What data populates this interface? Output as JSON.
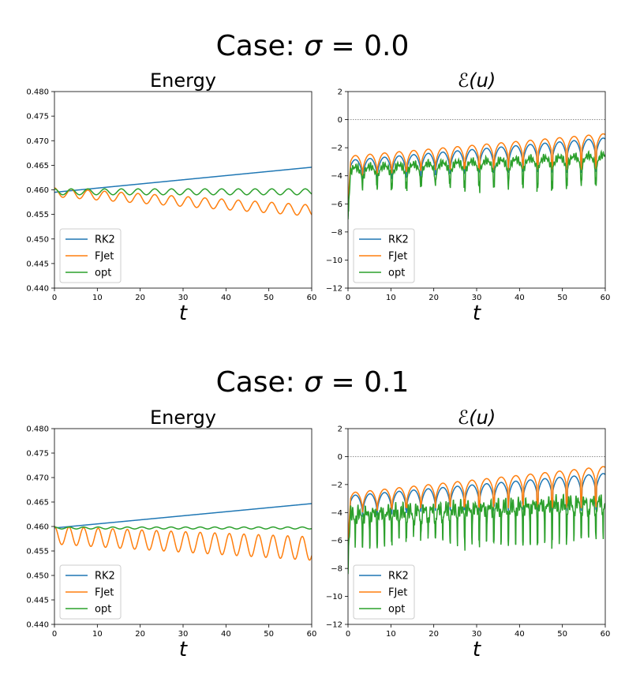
{
  "figure": {
    "cases": [
      {
        "title_prefix": "Case: ",
        "title_symbol": "σ",
        "title_value": " = 0.0"
      },
      {
        "title_prefix": "Case: ",
        "title_symbol": "σ",
        "title_value": " = 0.1"
      }
    ]
  },
  "chart_data": [
    {
      "id": "energy_sigma_0.0",
      "type": "line",
      "title": "Energy",
      "xlabel": "t",
      "ylabel": "",
      "xlim": [
        0,
        60
      ],
      "ylim": [
        0.44,
        0.48
      ],
      "xticks": [
        "0",
        "10",
        "20",
        "30",
        "40",
        "50",
        "60"
      ],
      "yticks": [
        "0.440",
        "0.445",
        "0.450",
        "0.455",
        "0.460",
        "0.465",
        "0.470",
        "0.475",
        "0.480"
      ],
      "legend": [
        "RK2",
        "FJet",
        "opt"
      ],
      "legend_loc": "lower-left",
      "series": [
        {
          "name": "RK2",
          "color": "#1f77b4",
          "model": {
            "kind": "energy",
            "base": 0.4595,
            "drift": 8.5e-05,
            "amp": 0.0,
            "period": 3.9,
            "amp_growth": 0.0
          }
        },
        {
          "name": "FJet",
          "color": "#ff7f0e",
          "model": {
            "kind": "energy",
            "base": 0.4595,
            "drift": -6.2e-05,
            "amp": 0.0009,
            "period": 3.9,
            "amp_growth": 4e-06
          }
        },
        {
          "name": "opt",
          "color": "#2ca02c",
          "model": {
            "kind": "energy",
            "base": 0.4596,
            "drift": 0.0,
            "amp": 0.0006,
            "period": 3.9,
            "amp_growth": 0.0
          }
        }
      ]
    },
    {
      "id": "error_sigma_0.0",
      "type": "line",
      "title": "ℰ(u)",
      "xlabel": "t",
      "ylabel": "",
      "xlim": [
        0,
        60
      ],
      "ylim": [
        -12,
        2
      ],
      "xticks": [
        "0",
        "10",
        "20",
        "30",
        "40",
        "50",
        "60"
      ],
      "yticks": [
        "−12",
        "−10",
        "−8",
        "−6",
        "−4",
        "−2",
        "0",
        "2"
      ],
      "hline": 0,
      "legend": [
        "RK2",
        "FJet",
        "opt"
      ],
      "legend_loc": "lower-left",
      "series": [
        {
          "name": "RK2",
          "color": "#1f77b4",
          "model": {
            "kind": "logerr",
            "top0": -2.9,
            "top1": -1.3,
            "dip": 1.6,
            "period": 3.4,
            "deep": -3.4,
            "noise": 0.0
          }
        },
        {
          "name": "FJet",
          "color": "#ff7f0e",
          "model": {
            "kind": "logerr",
            "top0": -2.6,
            "top1": -1.0,
            "dip": 1.5,
            "period": 3.4,
            "deep": -3.2,
            "noise": 0.0
          }
        },
        {
          "name": "opt",
          "color": "#2ca02c",
          "model": {
            "kind": "logerr",
            "top0": -3.4,
            "top1": -2.5,
            "dip": 1.3,
            "period": 3.4,
            "deep": -4.6,
            "noise": 0.3
          }
        }
      ]
    },
    {
      "id": "energy_sigma_0.1",
      "type": "line",
      "title": "Energy",
      "xlabel": "t",
      "ylabel": "",
      "xlim": [
        0,
        60
      ],
      "ylim": [
        0.44,
        0.48
      ],
      "xticks": [
        "0",
        "10",
        "20",
        "30",
        "40",
        "50",
        "60"
      ],
      "yticks": [
        "0.440",
        "0.445",
        "0.450",
        "0.455",
        "0.460",
        "0.465",
        "0.470",
        "0.475",
        "0.480"
      ],
      "legend": [
        "RK2",
        "FJet",
        "opt"
      ],
      "legend_loc": "lower-left",
      "series": [
        {
          "name": "RK2",
          "color": "#1f77b4",
          "model": {
            "kind": "energy",
            "base": 0.4597,
            "drift": 8.3e-05,
            "amp": 0.0,
            "period": 3.4,
            "amp_growth": 0.0
          }
        },
        {
          "name": "FJet",
          "color": "#ff7f0e",
          "model": {
            "kind": "energy",
            "base": 0.4582,
            "drift": -4.5e-05,
            "amp": 0.0018,
            "period": 3.4,
            "amp_growth": 1e-05
          }
        },
        {
          "name": "opt",
          "color": "#2ca02c",
          "model": {
            "kind": "energy",
            "base": 0.4597,
            "drift": 0.0,
            "amp": 0.0002,
            "period": 3.4,
            "amp_growth": 0.0
          }
        }
      ]
    },
    {
      "id": "error_sigma_0.1",
      "type": "line",
      "title": "ℰ(u)",
      "xlabel": "t",
      "ylabel": "",
      "xlim": [
        0,
        60
      ],
      "ylim": [
        -12,
        2
      ],
      "xticks": [
        "0",
        "10",
        "20",
        "30",
        "40",
        "50",
        "60"
      ],
      "yticks": [
        "−12",
        "−10",
        "−8",
        "−6",
        "−4",
        "−2",
        "0",
        "2"
      ],
      "hline": 0,
      "legend": [
        "RK2",
        "FJet",
        "opt"
      ],
      "legend_loc": "lower-left",
      "series": [
        {
          "name": "RK2",
          "color": "#1f77b4",
          "model": {
            "kind": "logerr",
            "top0": -2.8,
            "top1": -1.2,
            "dip": 1.6,
            "period": 3.4,
            "deep": -3.5,
            "noise": 0.0
          }
        },
        {
          "name": "FJet",
          "color": "#ff7f0e",
          "model": {
            "kind": "logerr",
            "top0": -2.6,
            "top1": -0.7,
            "dip": 1.5,
            "period": 3.4,
            "deep": -3.3,
            "noise": 0.0
          }
        },
        {
          "name": "opt",
          "color": "#2ca02c",
          "model": {
            "kind": "logerr",
            "top0": -4.0,
            "top1": -3.1,
            "dip": 1.4,
            "period": 1.7,
            "deep": -6.0,
            "noise": 0.6
          }
        }
      ]
    }
  ]
}
